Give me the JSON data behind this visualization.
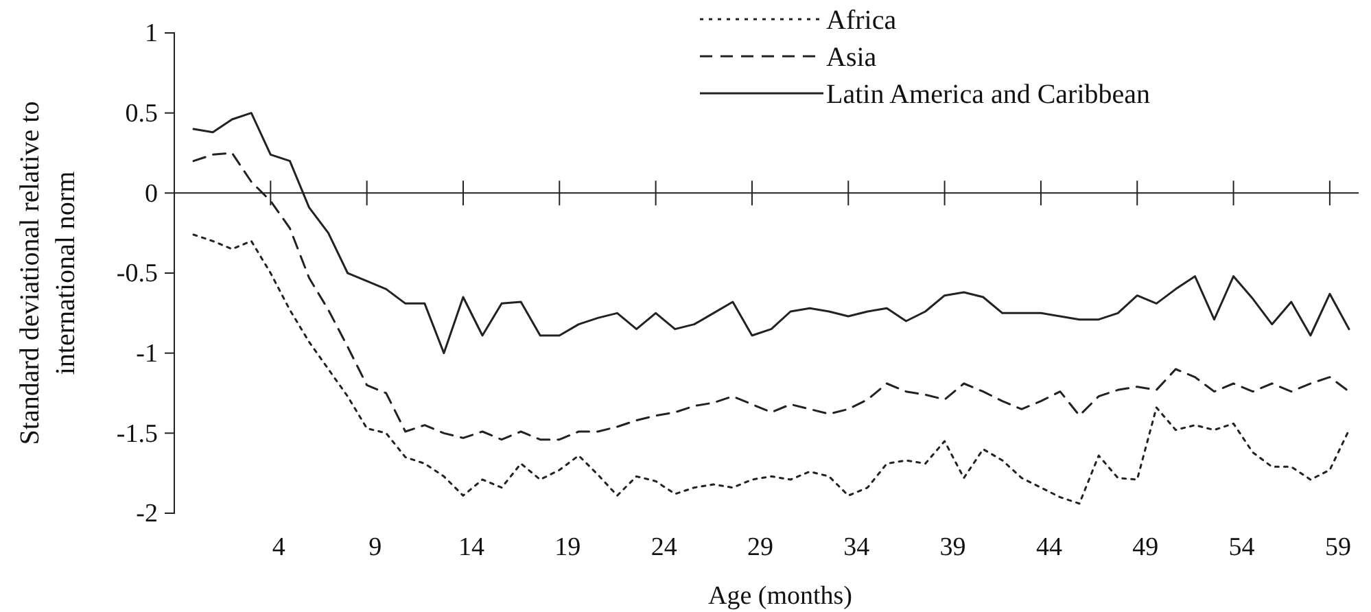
{
  "chart_data": {
    "type": "line",
    "xlabel": "Age (months)",
    "ylabel": "Standard deviational relative to\ninternational norm",
    "x": [
      0,
      1,
      2,
      3,
      4,
      5,
      6,
      7,
      8,
      9,
      10,
      11,
      12,
      13,
      14,
      15,
      16,
      17,
      18,
      19,
      20,
      21,
      22,
      23,
      24,
      25,
      26,
      27,
      28,
      29,
      30,
      31,
      32,
      33,
      34,
      35,
      36,
      37,
      38,
      39,
      40,
      41,
      42,
      43,
      44,
      45,
      46,
      47,
      48,
      49,
      50,
      51,
      52,
      53,
      54,
      55,
      56,
      57,
      58,
      59,
      60
    ],
    "xlim": [
      -1,
      60.5
    ],
    "xticks": [
      4,
      9,
      14,
      19,
      24,
      29,
      34,
      39,
      44,
      49,
      54,
      59
    ],
    "ylim": [
      -2,
      1
    ],
    "yticks": [
      1,
      0.5,
      0,
      -0.5,
      -1,
      -1.5,
      -2
    ],
    "legend": "top right",
    "ref_lines": [
      {
        "axis": "y",
        "value": 0
      }
    ],
    "grid": false,
    "marker": "none",
    "series": [
      {
        "name": "Africa",
        "color": "#222222",
        "line_style": "dotted",
        "values": [
          -0.26,
          -0.3,
          -0.35,
          -0.3,
          -0.5,
          -0.73,
          -0.93,
          -1.1,
          -1.27,
          -1.47,
          -1.5,
          -1.65,
          -1.69,
          -1.77,
          -1.89,
          -1.79,
          -1.84,
          -1.69,
          -1.79,
          -1.73,
          -1.64,
          -1.76,
          -1.89,
          -1.77,
          -1.8,
          -1.88,
          -1.84,
          -1.82,
          -1.84,
          -1.79,
          -1.77,
          -1.79,
          -1.74,
          -1.77,
          -1.89,
          -1.84,
          -1.69,
          -1.67,
          -1.69,
          -1.55,
          -1.78,
          -1.6,
          -1.67,
          -1.78,
          -1.84,
          -1.9,
          -1.94,
          -1.64,
          -1.78,
          -1.79,
          -1.34,
          -1.48,
          -1.45,
          -1.48,
          -1.44,
          -1.62,
          -1.71,
          -1.71,
          -1.79,
          -1.73,
          -1.48
        ]
      },
      {
        "name": "Asia",
        "color": "#222222",
        "line_style": "dashed",
        "values": [
          0.2,
          0.24,
          0.25,
          0.07,
          -0.05,
          -0.22,
          -0.53,
          -0.73,
          -0.96,
          -1.2,
          -1.25,
          -1.49,
          -1.45,
          -1.5,
          -1.53,
          -1.49,
          -1.54,
          -1.49,
          -1.54,
          -1.54,
          -1.49,
          -1.49,
          -1.46,
          -1.42,
          -1.39,
          -1.37,
          -1.33,
          -1.31,
          -1.27,
          -1.32,
          -1.37,
          -1.32,
          -1.35,
          -1.38,
          -1.35,
          -1.29,
          -1.19,
          -1.24,
          -1.26,
          -1.29,
          -1.19,
          -1.24,
          -1.3,
          -1.35,
          -1.3,
          -1.24,
          -1.39,
          -1.27,
          -1.23,
          -1.21,
          -1.23,
          -1.1,
          -1.15,
          -1.24,
          -1.19,
          -1.24,
          -1.19,
          -1.24,
          -1.19,
          -1.15,
          -1.24
        ]
      },
      {
        "name": "Latin America and Caribbean",
        "color": "#222222",
        "line_style": "solid",
        "values": [
          0.4,
          0.38,
          0.46,
          0.5,
          0.24,
          0.2,
          -0.09,
          -0.25,
          -0.5,
          -0.55,
          -0.6,
          -0.69,
          -0.69,
          -1.0,
          -0.65,
          -0.89,
          -0.69,
          -0.68,
          -0.89,
          -0.89,
          -0.82,
          -0.78,
          -0.75,
          -0.85,
          -0.75,
          -0.85,
          -0.82,
          -0.75,
          -0.68,
          -0.89,
          -0.85,
          -0.74,
          -0.72,
          -0.74,
          -0.77,
          -0.74,
          -0.72,
          -0.8,
          -0.74,
          -0.64,
          -0.62,
          -0.65,
          -0.75,
          -0.75,
          -0.75,
          -0.77,
          -0.79,
          -0.79,
          -0.75,
          -0.64,
          -0.69,
          -0.6,
          -0.52,
          -0.79,
          -0.52,
          -0.66,
          -0.82,
          -0.68,
          -0.89,
          -0.63,
          -0.85
        ]
      }
    ]
  }
}
